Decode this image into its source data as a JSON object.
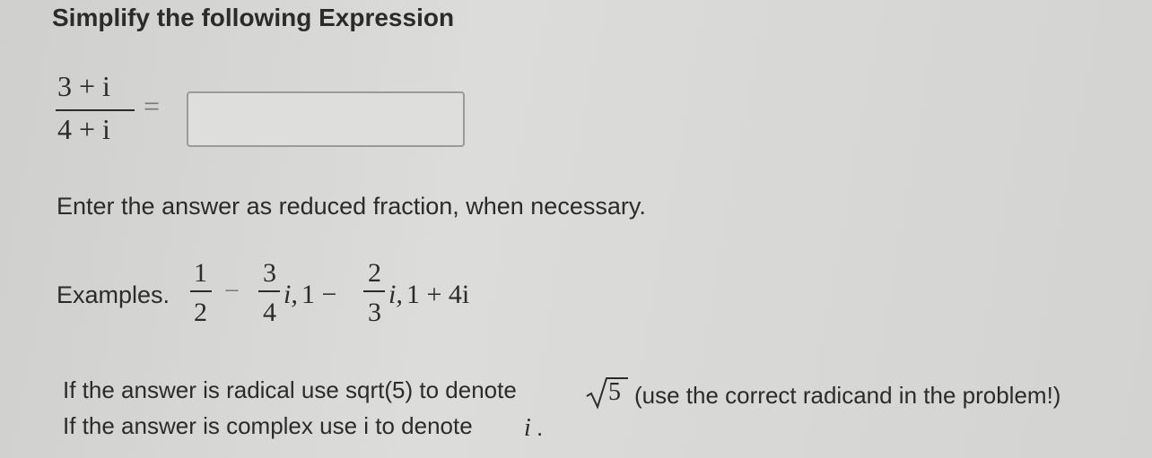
{
  "title": "Simplify the following Expression",
  "expression": {
    "numerator": "3 + i",
    "denominator": "4 + i",
    "equals": "="
  },
  "instruction": "Enter the answer as reduced fraction, when necessary.",
  "examples": {
    "label": "Examples.",
    "first": {
      "num_a": "1",
      "den_a": "2",
      "minus": "−",
      "num_b": "3",
      "den_b": "4",
      "suffix": "i,"
    },
    "second": {
      "lead": "1 −",
      "num": "2",
      "den": "3",
      "suffix": "i,"
    },
    "third": "1 + 4i"
  },
  "radical": {
    "before": "If the answer is radical use sqrt(5) to denote",
    "radicand": "5",
    "after": "(use the correct radicand in the problem!)"
  },
  "complex": {
    "before": "If the answer is complex use i to denote",
    "symbol": "i",
    "after": "."
  }
}
